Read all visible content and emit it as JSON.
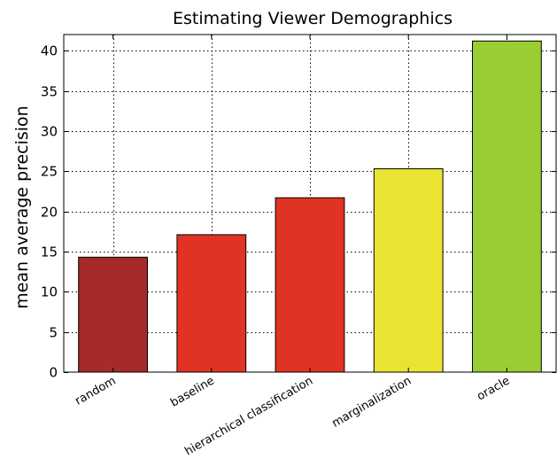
{
  "chart_data": {
    "type": "bar",
    "title": "Estimating Viewer Demographics",
    "xlabel": "",
    "ylabel": "mean average precision",
    "categories": [
      "random",
      "baseline",
      "hierarchical classification",
      "marginalization",
      "oracle"
    ],
    "values": [
      14.3,
      17.1,
      21.7,
      25.3,
      41.2
    ],
    "colors": [
      "#a52a2a",
      "#e03324",
      "#e03324",
      "#ebe332",
      "#9acd32"
    ],
    "ylim": [
      0,
      42
    ],
    "yticks": [
      0,
      5,
      10,
      15,
      20,
      25,
      30,
      35,
      40
    ],
    "grid": true,
    "legend": "none"
  }
}
